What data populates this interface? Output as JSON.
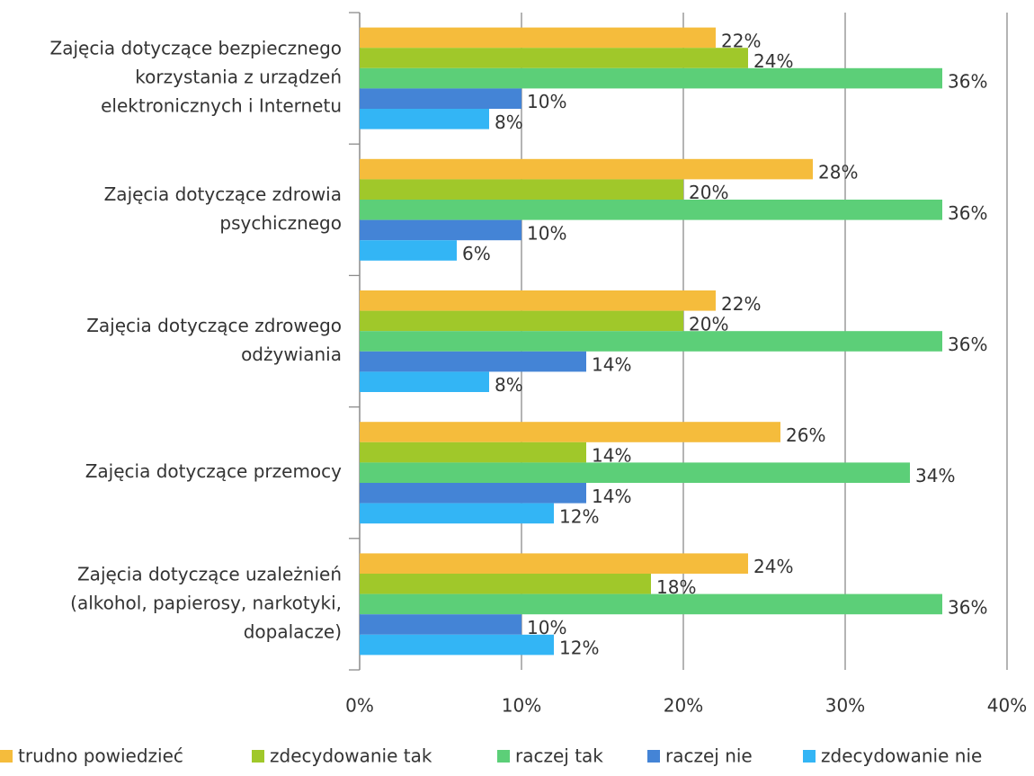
{
  "chart_data": {
    "type": "hbar",
    "categories": [
      [
        "Zajęcia dotyczące bezpiecznego",
        "korzystania z urządzeń",
        "elektronicznych i Internetu"
      ],
      [
        "Zajęcia dotyczące zdrowia",
        "psychicznego"
      ],
      [
        "Zajęcia dotyczące zdrowego",
        "odżywiania"
      ],
      [
        "Zajęcia dotyczące przemocy"
      ],
      [
        "Zajęcia dotyczące uzależnień",
        "(alkohol, papierosy, narkotyki,",
        "dopalacze)"
      ]
    ],
    "series": [
      {
        "name": "trudno powiedzieć",
        "color": "#f5bc3c",
        "values": [
          22,
          28,
          22,
          26,
          24
        ],
        "value_labels": [
          "22%",
          "28%",
          "22%",
          "26%",
          "24%"
        ]
      },
      {
        "name": "zdecydowanie tak",
        "color": "#a0c82a",
        "values": [
          24,
          20,
          20,
          14,
          18
        ],
        "value_labels": [
          "24%",
          "20%",
          "20%",
          "14%",
          "18%"
        ]
      },
      {
        "name": "raczej tak",
        "color": "#5ccf78",
        "values": [
          36,
          36,
          36,
          34,
          36
        ],
        "value_labels": [
          "36%",
          "36%",
          "36%",
          "34%",
          "36%"
        ]
      },
      {
        "name": "raczej nie",
        "color": "#4484d6",
        "values": [
          10,
          10,
          14,
          14,
          10
        ],
        "value_labels": [
          "10%",
          "10%",
          "14%",
          "14%",
          "10%"
        ]
      },
      {
        "name": "zdecydowanie nie",
        "color": "#33b5f5",
        "values": [
          8,
          6,
          8,
          12,
          12
        ],
        "value_labels": [
          "8%",
          "6%",
          "8%",
          "12%",
          "12%"
        ]
      }
    ],
    "xlim": [
      0,
      40
    ],
    "xticks": [
      {
        "value": 0,
        "label": "0%"
      },
      {
        "value": 10,
        "label": "10%"
      },
      {
        "value": 20,
        "label": "20%"
      },
      {
        "value": 30,
        "label": "30%"
      },
      {
        "value": 40,
        "label": "40%"
      }
    ],
    "grid": true,
    "legend": "bottom"
  }
}
